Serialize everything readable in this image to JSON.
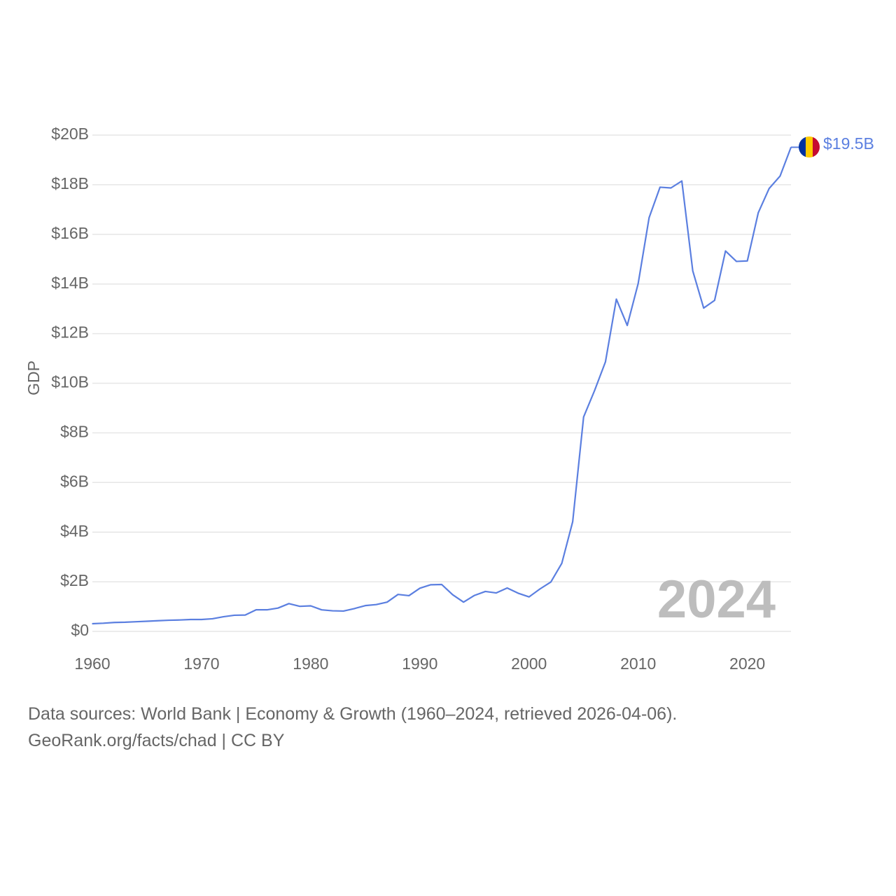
{
  "chart_data": {
    "type": "line",
    "title": "",
    "xlabel": "",
    "ylabel": "GDP",
    "xlim": [
      1960,
      2024
    ],
    "ylim": [
      0,
      20
    ],
    "y_unit": "billion USD",
    "x_ticks": [
      1960,
      1970,
      1980,
      1990,
      2000,
      2010,
      2020
    ],
    "y_ticks": [
      0,
      2,
      4,
      6,
      8,
      10,
      12,
      14,
      16,
      18,
      20
    ],
    "y_tick_labels": [
      "$0",
      "$2B",
      "$4B",
      "$6B",
      "$8B",
      "$10B",
      "$12B",
      "$14B",
      "$16B",
      "$18B",
      "$20B"
    ],
    "grid": true,
    "year_watermark": "2024",
    "end_label": "$19.5B",
    "series": [
      {
        "name": "Chad",
        "color": "#5b7fe0",
        "x": [
          1960,
          1961,
          1962,
          1963,
          1964,
          1965,
          1966,
          1967,
          1968,
          1969,
          1970,
          1971,
          1972,
          1973,
          1974,
          1975,
          1976,
          1977,
          1978,
          1979,
          1980,
          1981,
          1982,
          1983,
          1984,
          1985,
          1986,
          1987,
          1988,
          1989,
          1990,
          1991,
          1992,
          1993,
          1994,
          1995,
          1996,
          1997,
          1998,
          1999,
          2000,
          2001,
          2002,
          2003,
          2004,
          2005,
          2006,
          2007,
          2008,
          2009,
          2010,
          2011,
          2012,
          2013,
          2014,
          2015,
          2016,
          2017,
          2018,
          2019,
          2020,
          2021,
          2022,
          2023,
          2024
        ],
        "values": [
          0.31,
          0.33,
          0.36,
          0.37,
          0.39,
          0.41,
          0.43,
          0.45,
          0.46,
          0.48,
          0.48,
          0.51,
          0.59,
          0.65,
          0.66,
          0.87,
          0.87,
          0.94,
          1.12,
          1.01,
          1.03,
          0.87,
          0.83,
          0.82,
          0.92,
          1.04,
          1.08,
          1.18,
          1.49,
          1.44,
          1.74,
          1.88,
          1.89,
          1.48,
          1.18,
          1.45,
          1.61,
          1.55,
          1.75,
          1.54,
          1.39,
          1.71,
          1.99,
          2.74,
          4.42,
          8.64,
          9.7,
          10.86,
          13.39,
          12.33,
          14.02,
          16.67,
          17.9,
          17.87,
          18.15,
          14.53,
          13.03,
          13.34,
          15.33,
          14.91,
          14.93,
          16.87,
          17.85,
          18.35,
          19.51
        ]
      }
    ]
  },
  "footer": {
    "line1": "Data sources: World Bank | Economy & Growth (1960–2024, retrieved 2026-04-06).",
    "line2": "GeoRank.org/facts/chad | CC BY"
  },
  "flag": {
    "country": "Chad",
    "colors": [
      "#0032a0",
      "#fecb00",
      "#c60c30"
    ]
  }
}
